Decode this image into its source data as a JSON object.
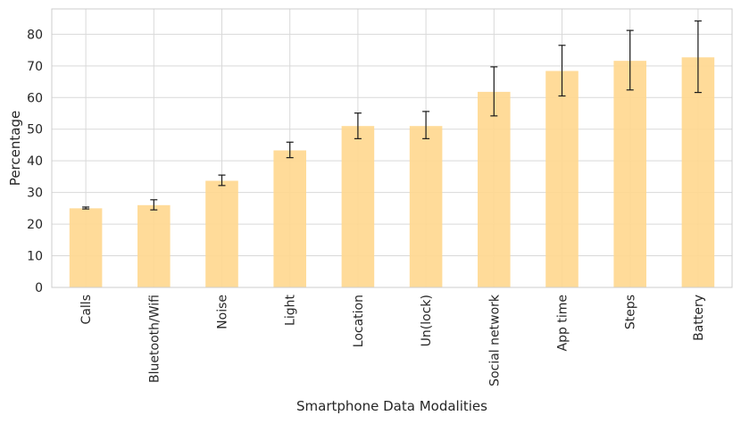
{
  "chart_data": {
    "type": "bar",
    "title": "",
    "xlabel": "Smartphone Data Modalities",
    "ylabel": "Percentage",
    "ylim": [
      0,
      88
    ],
    "yticks": [
      0,
      10,
      20,
      30,
      40,
      50,
      60,
      70,
      80
    ],
    "grid": true,
    "bar_color": "#ffd890",
    "errorbar_color": "#1a1a1a",
    "categories": [
      "Calls",
      "Bluetooth/Wifi",
      "Noise",
      "Light",
      "Location",
      "Un(lock)",
      "Social network",
      "App time",
      "Steps",
      "Battery"
    ],
    "values": [
      25.0,
      26.0,
      33.7,
      43.3,
      51.0,
      51.0,
      61.8,
      68.4,
      71.6,
      72.7
    ],
    "error_low": [
      24.8,
      24.5,
      32.2,
      41.0,
      47.0,
      47.0,
      54.2,
      60.5,
      62.4,
      61.6
    ],
    "error_high": [
      25.4,
      27.7,
      35.5,
      45.9,
      55.1,
      55.6,
      69.7,
      76.5,
      81.2,
      84.2
    ]
  }
}
